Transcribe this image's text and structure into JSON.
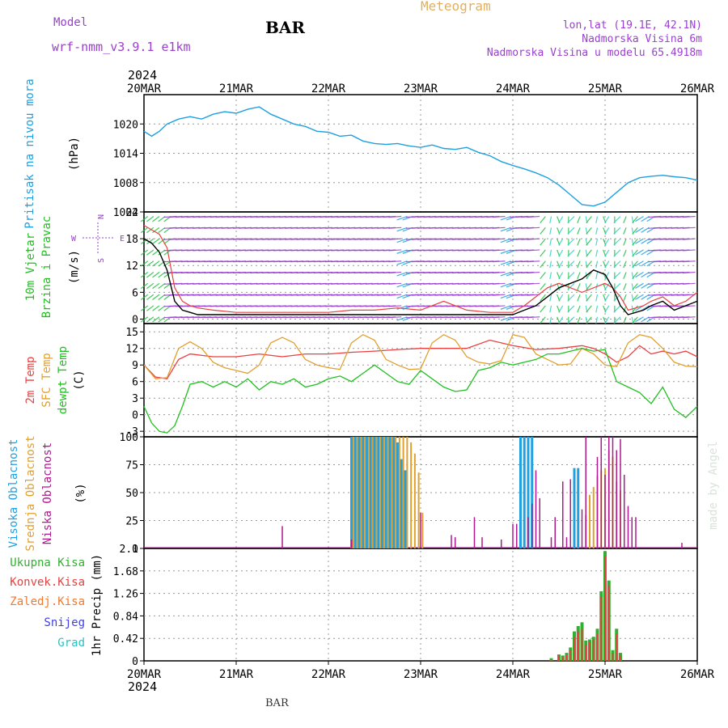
{
  "header": {
    "model_label": "Model",
    "model_name": "wrf-nmm_v3.9.1 e1km",
    "station": "BAR",
    "meteogram": "Meteogram",
    "lonlat": "lon,lat (19.1E, 42.1N)",
    "elevation": "Nadmorska Visina 6m",
    "model_elevation": "Nadmorska Visina u modelu 65.4918m",
    "year": "2024",
    "footer_station": "BAR",
    "credit": "made by Angel"
  },
  "colors": {
    "pressure": "#1ea0e0",
    "temp2m": "#e84040",
    "sfc": "#e0a030",
    "dewpt": "#20c020",
    "high_cloud": "#20a0e0",
    "mid_cloud": "#e0a030",
    "low_cloud": "#b01890",
    "total_precip": "#30b030",
    "conv_precip": "#e84040",
    "frozen": "#f07a30",
    "snow": "#4040e0",
    "hail": "#30c0c0",
    "wind_speed": "#000000",
    "wind_gust": "#e84040",
    "title_purple": "#9a40d0",
    "meteogram": "#e0b060"
  },
  "chart_data": [
    {
      "type": "line",
      "panel": "pressure",
      "labels": [
        "Pritisak na nivou mora",
        "(hPa)"
      ],
      "x_ticks": [
        "20MAR",
        "21MAR",
        "22MAR",
        "23MAR",
        "24MAR",
        "25MAR",
        "26MAR"
      ],
      "x_range_hours": [
        0,
        144
      ],
      "ylim": [
        1002,
        1026
      ],
      "yticks": [
        "1020",
        "1014",
        "1008",
        "1002"
      ],
      "series": [
        {
          "x": [
            0,
            2,
            4,
            6,
            9,
            12,
            15,
            18,
            21,
            24,
            27,
            30,
            33,
            36,
            39,
            42,
            45,
            48,
            51,
            54,
            57,
            60,
            63,
            66,
            69,
            72,
            75,
            78,
            81,
            84,
            87,
            90,
            93,
            96,
            99,
            102,
            105,
            108,
            111,
            114,
            117,
            120,
            123,
            126,
            129,
            132,
            135,
            138,
            141,
            144
          ],
          "y": [
            1018.5,
            1017.5,
            1018.5,
            1020,
            1021,
            1021.5,
            1021,
            1022,
            1022.5,
            1022.2,
            1023,
            1023.5,
            1022,
            1021,
            1020,
            1019.5,
            1018.5,
            1018.3,
            1017.5,
            1017.7,
            1016.5,
            1016,
            1015.8,
            1016,
            1015.5,
            1015.2,
            1015.7,
            1015,
            1014.8,
            1015.2,
            1014.2,
            1013.5,
            1012.3,
            1011.5,
            1010.8,
            1010,
            1009,
            1007.5,
            1005.5,
            1003.5,
            1003.2,
            1004,
            1006,
            1008,
            1009,
            1009.3,
            1009.5,
            1009.2,
            1009,
            1008.5
          ]
        }
      ]
    },
    {
      "type": "line",
      "panel": "wind",
      "labels": [
        "10m Vjetar",
        "Brzina i Pravac",
        "(m/s)"
      ],
      "compass": [
        "N",
        "W",
        "E",
        "S"
      ],
      "ylim": [
        -1,
        24
      ],
      "yticks": [
        "24",
        "18",
        "12",
        "6",
        "0"
      ],
      "series": [
        {
          "name": "speed",
          "x": [
            0,
            2,
            4,
            6,
            8,
            10,
            12,
            14,
            18,
            24,
            30,
            36,
            42,
            48,
            54,
            60,
            66,
            72,
            78,
            84,
            90,
            96,
            99,
            102,
            105,
            108,
            111,
            114,
            117,
            120,
            122,
            124,
            126,
            128,
            130,
            132,
            135,
            138,
            141,
            144
          ],
          "y": [
            18,
            17,
            15,
            11,
            4,
            2,
            1.5,
            1,
            1,
            1,
            1,
            1,
            1,
            1,
            1,
            1,
            1,
            1,
            1,
            1,
            1,
            1,
            2,
            3,
            5,
            7,
            8,
            9,
            11,
            10,
            7,
            3,
            1,
            1.5,
            2,
            3,
            4,
            2,
            3,
            4
          ]
        },
        {
          "name": "gust",
          "x": [
            0,
            2,
            4,
            6,
            8,
            10,
            12,
            14,
            18,
            24,
            30,
            36,
            42,
            48,
            54,
            60,
            66,
            72,
            78,
            84,
            90,
            96,
            99,
            102,
            105,
            108,
            111,
            114,
            117,
            120,
            122,
            124,
            126,
            128,
            130,
            132,
            135,
            138,
            141,
            144
          ],
          "y": [
            21,
            20,
            19,
            16,
            7,
            4,
            3,
            2.5,
            2,
            1.5,
            1.5,
            1.5,
            1.5,
            1.5,
            2,
            2,
            2.5,
            2,
            4,
            2,
            1.5,
            1.5,
            3,
            5,
            7,
            8,
            7,
            6,
            7,
            8,
            7,
            5,
            2,
            2.5,
            3,
            4,
            5,
            3,
            4,
            6
          ]
        }
      ]
    },
    {
      "type": "line",
      "panel": "temperature",
      "labels": [
        "2m Temp",
        "SFC Temp",
        "dewpt Temp",
        "(C)"
      ],
      "ylim": [
        -4,
        16.5
      ],
      "yticks": [
        "15",
        "12",
        "9",
        "6",
        "3",
        "0",
        "-3"
      ],
      "series": [
        {
          "name": "2m Temp",
          "x": [
            0,
            3,
            6,
            9,
            12,
            18,
            24,
            30,
            36,
            42,
            48,
            54,
            60,
            66,
            72,
            78,
            84,
            90,
            96,
            102,
            108,
            114,
            117,
            120,
            123,
            126,
            129,
            132,
            135,
            138,
            141,
            144
          ],
          "y": [
            9,
            6.8,
            6.5,
            10,
            11,
            10.5,
            10.5,
            11,
            10.5,
            11,
            11,
            11.3,
            11.5,
            11.8,
            12,
            12,
            12,
            13.5,
            12.5,
            11.8,
            12,
            12.5,
            12,
            11,
            9.5,
            10.5,
            12.5,
            11,
            11.5,
            11,
            11.5,
            10.5
          ]
        },
        {
          "name": "SFC Temp",
          "x": [
            0,
            3,
            6,
            9,
            12,
            15,
            18,
            21,
            24,
            27,
            30,
            33,
            36,
            39,
            42,
            45,
            48,
            51,
            54,
            57,
            60,
            63,
            66,
            69,
            72,
            75,
            78,
            81,
            84,
            87,
            90,
            93,
            96,
            99,
            102,
            105,
            108,
            111,
            114,
            117,
            120,
            123,
            126,
            129,
            132,
            135,
            138,
            141,
            144
          ],
          "y": [
            9,
            6.5,
            6.7,
            12,
            13.2,
            12,
            9.5,
            8.5,
            8,
            7.5,
            9,
            13,
            14,
            13,
            10,
            9,
            8.5,
            8.2,
            13,
            14.5,
            13.5,
            10,
            9,
            8.2,
            8.3,
            13,
            14.5,
            13.5,
            10.5,
            9.5,
            9.2,
            9.8,
            14.5,
            14,
            11,
            10,
            9,
            9.2,
            12,
            11,
            9,
            8.7,
            13,
            14.5,
            14,
            12,
            9.5,
            8.8,
            8.7
          ]
        },
        {
          "name": "dewpt Temp",
          "x": [
            0,
            2,
            4,
            6,
            8,
            10,
            12,
            15,
            18,
            21,
            24,
            27,
            30,
            33,
            36,
            39,
            42,
            45,
            48,
            51,
            54,
            57,
            60,
            63,
            66,
            69,
            72,
            75,
            78,
            81,
            84,
            87,
            90,
            93,
            96,
            99,
            102,
            105,
            108,
            111,
            114,
            117,
            120,
            123,
            126,
            129,
            132,
            135,
            138,
            141,
            144
          ],
          "y": [
            1.5,
            -1.5,
            -3,
            -3.3,
            -2,
            1.5,
            5.5,
            6,
            5,
            6,
            5,
            6.5,
            4.5,
            6,
            5.5,
            6.5,
            5,
            5.5,
            6.5,
            7,
            6,
            7.5,
            9,
            7.5,
            6,
            5.5,
            8,
            6.5,
            5,
            4.2,
            4.5,
            8,
            8.5,
            9.5,
            9,
            9.5,
            10,
            11,
            11,
            11.5,
            12,
            11.5,
            11.8,
            6,
            5,
            4,
            2,
            5,
            1,
            -0.5,
            1.5
          ]
        }
      ]
    },
    {
      "type": "bar",
      "panel": "clouds",
      "labels": [
        "Visoka Oblacnost",
        "Srednja Oblacnost",
        "Niska Oblacnost",
        "(%)"
      ],
      "ylim": [
        0,
        100
      ],
      "yticks": [
        "100",
        "75",
        "50",
        "25",
        "0"
      ],
      "series": [
        {
          "name": "Visoka Oblacnost",
          "x": [
            54,
            55,
            56,
            57,
            58,
            59,
            60,
            61,
            62,
            63,
            64,
            65,
            66,
            67,
            68,
            98,
            99,
            100,
            101,
            112,
            113
          ],
          "y": [
            100,
            100,
            100,
            100,
            100,
            100,
            100,
            100,
            100,
            100,
            100,
            100,
            95,
            80,
            70,
            100,
            100,
            100,
            100,
            72,
            72
          ]
        },
        {
          "name": "Srednja Oblacnost",
          "x": [
            54.5,
            55.5,
            56.5,
            57.5,
            58.5,
            59.5,
            60.5,
            61.5,
            62.5,
            63.5,
            64.5,
            65.5,
            66.5,
            67.5,
            68.5,
            69.5,
            70.5,
            71.5,
            72.5,
            115,
            116,
            117,
            118,
            119,
            120,
            121,
            122,
            123,
            124
          ],
          "y": [
            100,
            100,
            100,
            100,
            100,
            100,
            100,
            100,
            100,
            100,
            100,
            100,
            100,
            100,
            100,
            95,
            85,
            68,
            32,
            30,
            48,
            55,
            65,
            70,
            72,
            88,
            82,
            60,
            52
          ]
        },
        {
          "name": "Niska Oblacnost",
          "x": [
            36,
            54,
            72,
            80,
            81,
            86,
            88,
            93,
            96,
            97,
            100,
            101,
            102,
            103,
            106,
            107,
            109,
            110,
            111,
            114,
            115,
            118,
            119,
            120,
            121,
            122,
            123,
            124,
            125,
            126,
            127,
            128,
            140
          ],
          "y": [
            20,
            8,
            32,
            12,
            10,
            28,
            10,
            8,
            22,
            22,
            28,
            40,
            70,
            45,
            10,
            28,
            60,
            10,
            62,
            35,
            100,
            82,
            100,
            66,
            100,
            100,
            88,
            98,
            66,
            38,
            28,
            28,
            5
          ]
        }
      ]
    },
    {
      "type": "bar",
      "panel": "precipitation",
      "labels": [
        "Ukupna Kisa",
        "Konvek.Kisa",
        "Zaledj.Kisa",
        "Snijeg",
        "Grad",
        "1hr Precip (mm)"
      ],
      "ylim": [
        0,
        2.1
      ],
      "yticks": [
        "2.1",
        "1.68",
        "1.26",
        "0.84",
        "0.42",
        "0"
      ],
      "series": [
        {
          "name": "Ukupna Kisa",
          "x": [
            106,
            108,
            109,
            110,
            111,
            112,
            113,
            114,
            115,
            116,
            117,
            118,
            119,
            120,
            121,
            122,
            123,
            124
          ],
          "y": [
            0.05,
            0.12,
            0.1,
            0.15,
            0.25,
            0.55,
            0.65,
            0.72,
            0.38,
            0.4,
            0.45,
            0.6,
            1.3,
            2.05,
            1.5,
            0.2,
            0.6,
            0.15
          ]
        },
        {
          "name": "Konvek.Kisa",
          "x": [
            106,
            108,
            109,
            110,
            111,
            112,
            113,
            114,
            115,
            116,
            117,
            118,
            119,
            120,
            121,
            122,
            123,
            124
          ],
          "y": [
            0.03,
            0.1,
            0.08,
            0.12,
            0.2,
            0.45,
            0.55,
            0.6,
            0.3,
            0.35,
            0.4,
            0.5,
            1.2,
            1.95,
            1.4,
            0.15,
            0.5,
            0.1
          ]
        }
      ]
    }
  ]
}
